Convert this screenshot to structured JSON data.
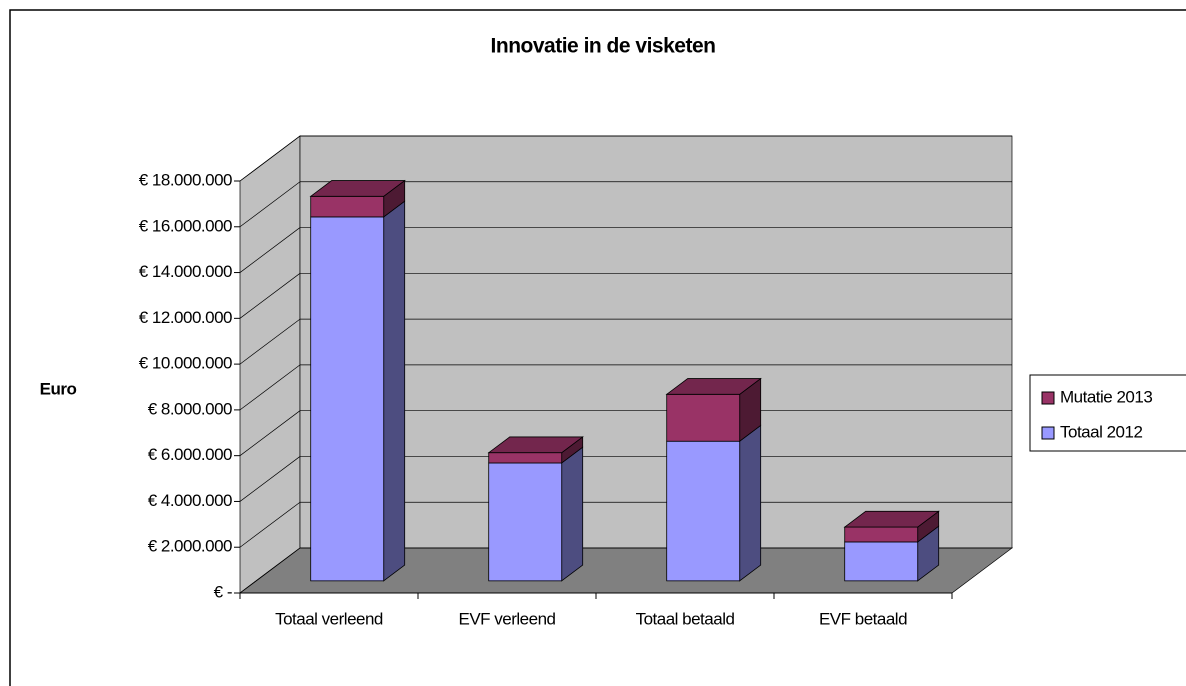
{
  "chart_data": {
    "type": "bar3d_stacked",
    "title": "Innovatie in de visketen",
    "ylabel": "Euro",
    "categories": [
      "Totaal verleend",
      "EVF verleend",
      "Totaal betaald",
      "EVF betaald"
    ],
    "series": [
      {
        "name": "Totaal 2012",
        "color": "#9999ff",
        "values": [
          15900000,
          5150000,
          6100000,
          1700000
        ]
      },
      {
        "name": "Mutatie 2013",
        "color": "#993366",
        "values": [
          900000,
          450000,
          2050000,
          650000
        ]
      }
    ],
    "ylim": [
      0,
      18000000
    ],
    "yticks": [
      {
        "value": 0,
        "label": "€ -"
      },
      {
        "value": 2000000,
        "label": "€ 2.000.000"
      },
      {
        "value": 4000000,
        "label": "€ 4.000.000"
      },
      {
        "value": 6000000,
        "label": "€ 6.000.000"
      },
      {
        "value": 8000000,
        "label": "€ 8.000.000"
      },
      {
        "value": 10000000,
        "label": "€ 10.000.000"
      },
      {
        "value": 12000000,
        "label": "€ 12.000.000"
      },
      {
        "value": 14000000,
        "label": "€ 14.000.000"
      },
      {
        "value": 16000000,
        "label": "€ 16.000.000"
      },
      {
        "value": 18000000,
        "label": "€ 18.000.000"
      }
    ],
    "grid": true,
    "legend": "right"
  }
}
